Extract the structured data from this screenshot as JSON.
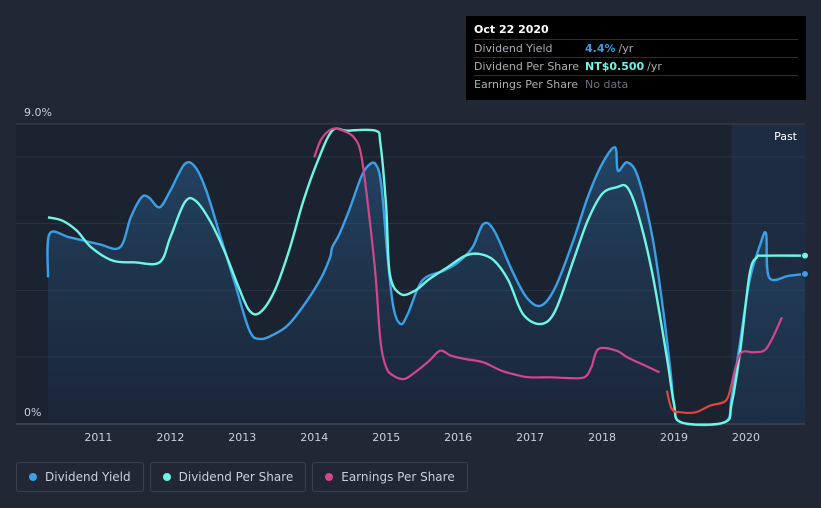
{
  "tooltip": {
    "date": "Oct 22 2020",
    "rows": [
      {
        "label": "Dividend Yield",
        "value": "4.4%",
        "unit": "/yr",
        "color": "#3b9fe6"
      },
      {
        "label": "Dividend Per Share",
        "value": "NT$0.500",
        "unit": "/yr",
        "color": "#6ff5e3"
      },
      {
        "label": "Earnings Per Share",
        "value": "No data",
        "unit": "",
        "color": "#6b7280"
      }
    ]
  },
  "past_label": "Past",
  "legend": [
    {
      "label": "Dividend Yield",
      "color": "#3b9fe6"
    },
    {
      "label": "Dividend Per Share",
      "color": "#6ff5e3"
    },
    {
      "label": "Earnings Per Share",
      "color": "#d2468c"
    }
  ],
  "chart_data": {
    "type": "line",
    "y_tick_labels": [
      "0%",
      "9.0%"
    ],
    "ylim": [
      0,
      9.0
    ],
    "xlim": [
      2010.3,
      2020.82
    ],
    "x_ticks": [
      2011,
      2012,
      2013,
      2014,
      2015,
      2016,
      2017,
      2018,
      2019,
      2020
    ],
    "series": [
      {
        "name": "Dividend Yield",
        "color": "#3b9fe6",
        "points": [
          [
            2010.3,
            4.4
          ],
          [
            2010.32,
            5.7
          ],
          [
            2010.6,
            5.6
          ],
          [
            2011.0,
            5.4
          ],
          [
            2011.3,
            5.3
          ],
          [
            2011.45,
            6.2
          ],
          [
            2011.6,
            6.8
          ],
          [
            2011.7,
            6.8
          ],
          [
            2011.85,
            6.5
          ],
          [
            2012.0,
            7.0
          ],
          [
            2012.2,
            7.8
          ],
          [
            2012.35,
            7.7
          ],
          [
            2012.5,
            7.0
          ],
          [
            2012.7,
            5.6
          ],
          [
            2012.9,
            4.2
          ],
          [
            2013.1,
            2.8
          ],
          [
            2013.25,
            2.55
          ],
          [
            2013.45,
            2.7
          ],
          [
            2013.65,
            3.0
          ],
          [
            2013.9,
            3.7
          ],
          [
            2014.1,
            4.4
          ],
          [
            2014.22,
            5.0
          ],
          [
            2014.25,
            5.3
          ],
          [
            2014.35,
            5.7
          ],
          [
            2014.5,
            6.5
          ],
          [
            2014.65,
            7.4
          ],
          [
            2014.75,
            7.75
          ],
          [
            2014.85,
            7.8
          ],
          [
            2014.93,
            7.2
          ],
          [
            2015.02,
            5.0
          ],
          [
            2015.1,
            3.5
          ],
          [
            2015.2,
            3.0
          ],
          [
            2015.3,
            3.3
          ],
          [
            2015.5,
            4.3
          ],
          [
            2015.8,
            4.6
          ],
          [
            2016.0,
            4.85
          ],
          [
            2016.2,
            5.3
          ],
          [
            2016.35,
            6.0
          ],
          [
            2016.5,
            5.8
          ],
          [
            2016.75,
            4.6
          ],
          [
            2016.95,
            3.8
          ],
          [
            2017.15,
            3.55
          ],
          [
            2017.35,
            4.1
          ],
          [
            2017.6,
            5.5
          ],
          [
            2017.8,
            6.8
          ],
          [
            2018.0,
            7.8
          ],
          [
            2018.18,
            8.3
          ],
          [
            2018.22,
            7.6
          ],
          [
            2018.35,
            7.85
          ],
          [
            2018.5,
            7.4
          ],
          [
            2018.7,
            5.6
          ],
          [
            2018.85,
            3.4
          ],
          [
            2018.95,
            1.6
          ],
          [
            2019.0,
            0.6
          ],
          [
            2019.1,
            0.05
          ],
          [
            2019.7,
            0.05
          ],
          [
            2019.8,
            0.8
          ],
          [
            2019.92,
            2.5
          ],
          [
            2020.05,
            4.3
          ],
          [
            2020.2,
            5.4
          ],
          [
            2020.28,
            5.7
          ],
          [
            2020.32,
            4.4
          ],
          [
            2020.6,
            4.45
          ],
          [
            2020.82,
            4.5
          ]
        ]
      },
      {
        "name": "Dividend Per Share",
        "color": "#6ff5e3",
        "points": [
          [
            2010.3,
            6.2
          ],
          [
            2010.5,
            6.1
          ],
          [
            2010.7,
            5.8
          ],
          [
            2010.9,
            5.3
          ],
          [
            2011.2,
            4.9
          ],
          [
            2011.5,
            4.85
          ],
          [
            2011.85,
            4.85
          ],
          [
            2012.0,
            5.6
          ],
          [
            2012.2,
            6.65
          ],
          [
            2012.35,
            6.7
          ],
          [
            2012.55,
            6.1
          ],
          [
            2012.75,
            5.2
          ],
          [
            2012.95,
            4.1
          ],
          [
            2013.1,
            3.4
          ],
          [
            2013.25,
            3.35
          ],
          [
            2013.45,
            4.0
          ],
          [
            2013.65,
            5.2
          ],
          [
            2013.85,
            6.7
          ],
          [
            2014.05,
            7.9
          ],
          [
            2014.25,
            8.8
          ],
          [
            2014.45,
            8.8
          ],
          [
            2014.85,
            8.8
          ],
          [
            2014.92,
            8.4
          ],
          [
            2015.0,
            6.5
          ],
          [
            2015.05,
            4.5
          ],
          [
            2015.2,
            3.9
          ],
          [
            2015.4,
            4.0
          ],
          [
            2015.6,
            4.35
          ],
          [
            2015.85,
            4.7
          ],
          [
            2016.1,
            5.05
          ],
          [
            2016.3,
            5.1
          ],
          [
            2016.5,
            4.9
          ],
          [
            2016.7,
            4.3
          ],
          [
            2016.9,
            3.3
          ],
          [
            2017.15,
            3.0
          ],
          [
            2017.35,
            3.4
          ],
          [
            2017.6,
            4.9
          ],
          [
            2017.8,
            6.1
          ],
          [
            2018.0,
            6.9
          ],
          [
            2018.2,
            7.1
          ],
          [
            2018.35,
            7.1
          ],
          [
            2018.5,
            6.3
          ],
          [
            2018.7,
            4.5
          ],
          [
            2018.9,
            2.0
          ],
          [
            2019.0,
            0.6
          ],
          [
            2019.1,
            0.05
          ],
          [
            2019.7,
            0.05
          ],
          [
            2019.8,
            0.6
          ],
          [
            2019.92,
            2.2
          ],
          [
            2020.05,
            4.5
          ],
          [
            2020.15,
            5.0
          ],
          [
            2020.25,
            5.05
          ],
          [
            2020.82,
            5.05
          ]
        ]
      },
      {
        "name": "Earnings Per Share",
        "color": "#d2468c",
        "points": [
          [
            2014.0,
            8.0
          ],
          [
            2014.1,
            8.55
          ],
          [
            2014.25,
            8.85
          ],
          [
            2014.4,
            8.8
          ],
          [
            2014.55,
            8.6
          ],
          [
            2014.65,
            8.1
          ],
          [
            2014.75,
            6.5
          ],
          [
            2014.85,
            4.5
          ],
          [
            2014.92,
            2.5
          ],
          [
            2015.0,
            1.7
          ],
          [
            2015.1,
            1.45
          ],
          [
            2015.25,
            1.35
          ],
          [
            2015.4,
            1.55
          ],
          [
            2015.6,
            1.9
          ],
          [
            2015.75,
            2.2
          ],
          [
            2015.9,
            2.05
          ],
          [
            2016.1,
            1.95
          ],
          [
            2016.35,
            1.85
          ],
          [
            2016.6,
            1.6
          ],
          [
            2016.85,
            1.45
          ],
          [
            2017.0,
            1.4
          ],
          [
            2017.3,
            1.4
          ],
          [
            2017.5,
            1.38
          ],
          [
            2017.75,
            1.4
          ],
          [
            2017.85,
            1.7
          ],
          [
            2017.95,
            2.25
          ],
          [
            2018.2,
            2.2
          ],
          [
            2018.35,
            2.0
          ],
          [
            2018.6,
            1.75
          ],
          [
            2018.8,
            1.55
          ],
          [
            2018.9,
            1.0
          ],
          [
            2018.97,
            0.45
          ],
          [
            2019.1,
            0.35
          ],
          [
            2019.3,
            0.35
          ],
          [
            2019.5,
            0.55
          ],
          [
            2019.72,
            0.7
          ],
          [
            2019.8,
            1.2
          ],
          [
            2019.92,
            2.1
          ],
          [
            2020.1,
            2.15
          ],
          [
            2020.25,
            2.2
          ],
          [
            2020.35,
            2.5
          ],
          [
            2020.5,
            3.2
          ]
        ]
      }
    ],
    "eps_negative_color": "#e2453c",
    "eps_negative_range": [
      2018.88,
      2019.78
    ]
  }
}
